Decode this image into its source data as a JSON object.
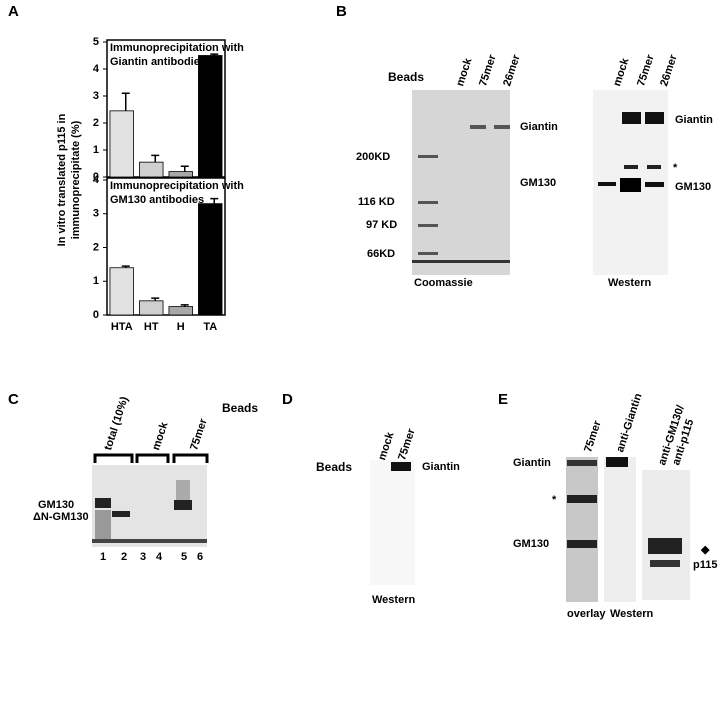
{
  "chart_data": [
    {
      "type": "bar",
      "title": [
        "Immunoprecipitation with",
        "Giantin antibodies"
      ],
      "values": [
        2.45,
        0.55,
        0.2,
        4.5
      ],
      "errors": [
        0.65,
        0.25,
        0.2,
        0.05
      ],
      "colors": [
        "#e2e2e2",
        "#cfcfcf",
        "#a8a8a8",
        "#000000"
      ],
      "ylim": [
        0,
        5
      ],
      "yticks": [
        0,
        1,
        2,
        3,
        4,
        5
      ]
    },
    {
      "type": "bar",
      "title": [
        "Immunoprecipitation with",
        "GM130 antibodies"
      ],
      "categories": [
        "HTA",
        "HT",
        "H",
        "TA"
      ],
      "values": [
        1.4,
        0.42,
        0.25,
        3.3
      ],
      "errors": [
        0.05,
        0.08,
        0.05,
        0.15
      ],
      "colors": [
        "#e2e2e2",
        "#cfcfcf",
        "#a8a8a8",
        "#000000"
      ],
      "ylim": [
        0,
        4
      ],
      "yticks": [
        0,
        1,
        2,
        3,
        4
      ]
    }
  ],
  "panel_a": {
    "label": "A",
    "y_label": [
      "In vitro translated p115 in",
      "immunoprecipitate (%)"
    ]
  },
  "panel_b": {
    "label": "B",
    "beads": "Beads",
    "coomassie_lanes": [
      "mock",
      "75mer",
      "26mer"
    ],
    "markers": [
      "200KD",
      "116 KD",
      "97 KD",
      "66KD"
    ],
    "coomassie_bands": [
      "Giantin",
      "GM130"
    ],
    "coomassie_caption": "Coomassie",
    "western_lanes": [
      "mock",
      "75mer",
      "26mer"
    ],
    "western_bands": [
      "Giantin",
      "*",
      "GM130"
    ],
    "western_caption": "Western"
  },
  "panel_c": {
    "label": "C",
    "beads": "Beads",
    "groups": [
      "total (10%)",
      "mock",
      "75mer"
    ],
    "bands": [
      "GM130",
      "ΔN-GM130"
    ],
    "lanes": [
      "1",
      "2",
      "3",
      "4",
      "5",
      "6"
    ]
  },
  "panel_d": {
    "label": "D",
    "beads": "Beads",
    "lanes": [
      "mock",
      "75mer"
    ],
    "band": "Giantin",
    "caption": "Western"
  },
  "panel_e": {
    "label": "E",
    "lanes": [
      "75mer",
      "anti-Giantin",
      "anti-GM130/",
      "anti-p115"
    ],
    "bands": [
      "Giantin",
      "*",
      "GM130"
    ],
    "marker": "◆",
    "p115": "p115",
    "captions": [
      "overlay",
      "Western"
    ]
  }
}
